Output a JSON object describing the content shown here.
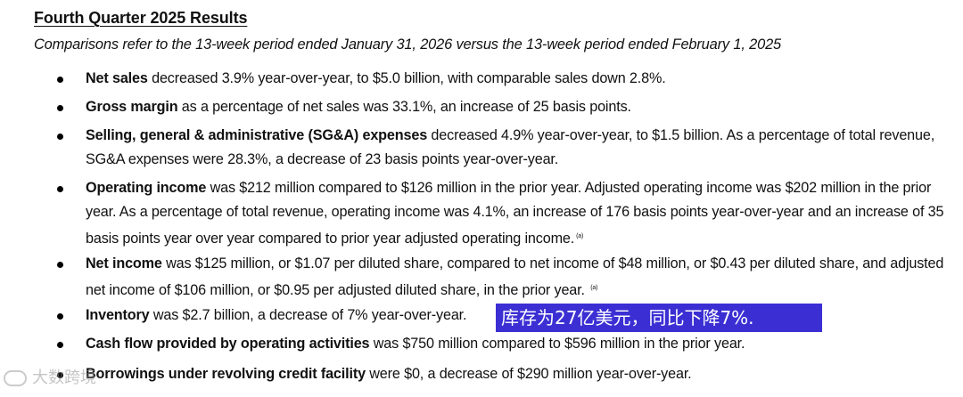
{
  "heading": "Fourth Quarter 2025 Results",
  "subheading": "Comparisons refer to the 13-week period ended January 31, 2026 versus the 13-week period ended February 1, 2025",
  "bullets": [
    {
      "lead": "Net sales",
      "text": " decreased 3.9% year-over-year, to $5.0 billion, with comparable sales down 2.8%.",
      "note": ""
    },
    {
      "lead": "Gross margin",
      "text": " as a percentage of net sales was 33.1%, an increase of 25 basis points.",
      "note": ""
    },
    {
      "lead": "Selling, general & administrative (SG&A) expenses",
      "text": " decreased 4.9% year-over-year, to $1.5 billion. As a percentage of total revenue, SG&A expenses were 28.3%, a decrease of 23 basis points year-over-year.",
      "note": ""
    },
    {
      "lead": "Operating income",
      "text": " was $212 million compared to $126 million in the prior year. Adjusted operating income was $202 million in the prior year.  As a percentage of total revenue, operating income was 4.1%, an increase of 176 basis points year-over-year and an increase of 35 basis points year over year compared to prior year adjusted operating income.",
      "note": "(a)"
    },
    {
      "lead": "Net income",
      "text": " was $125 million, or $1.07 per diluted share, compared to net income of $48 million, or $0.43 per diluted share, and adjusted net income of $106 million, or $0.95 per adjusted diluted share, in the prior year. ",
      "note": "(a)"
    },
    {
      "lead": "Inventory",
      "text": " was $2.7 billion, a decrease of 7% year-over-year.",
      "note": ""
    },
    {
      "lead": "Cash flow provided by operating activities",
      "text": " was $750 million compared to $596 million in the prior year.",
      "note": ""
    },
    {
      "lead": "Borrowings under revolving credit facility",
      "text": " were $0, a decrease of $290 million year-over-year.",
      "note": ""
    }
  ],
  "overlay_caption": "库存为27亿美元，同比下降7%.",
  "watermark_text": "大数跨境",
  "colors": {
    "overlay_bg": "#3b2fd4",
    "overlay_text": "#ffffff",
    "text": "#111111"
  },
  "icons": {
    "bullet": "filled-circle",
    "watermark": "brand-logo"
  }
}
